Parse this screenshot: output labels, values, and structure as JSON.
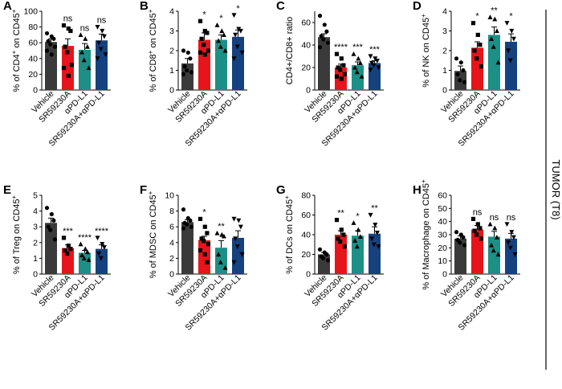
{
  "side_label": "TUMOR (T8)",
  "colors": {
    "Vehicle": "#3a3a3a",
    "SR59230A": "#e8141b",
    "aPD-L1": "#1c8f86",
    "SR59230A+aPD-L1": "#15427f"
  },
  "marker_shapes": [
    "circle",
    "square",
    "triangle-up",
    "triangle-down"
  ],
  "chart_data": [
    {
      "panel": "A",
      "type": "bar",
      "ylabel_parts": [
        "% of CD4",
        "+",
        " on CD45",
        "+"
      ],
      "ylim": [
        0,
        100
      ],
      "ticks": [
        0,
        20,
        40,
        60,
        80,
        100
      ],
      "categories": [
        "Vehicle",
        "SR59230A",
        "αPD-L1",
        "SR59230A+αPD-L1"
      ],
      "means": [
        61,
        56,
        51,
        63
      ],
      "sems": [
        4,
        9,
        8,
        8
      ],
      "significance": [
        "",
        "ns",
        "ns",
        "ns"
      ],
      "points": [
        [
          72,
          68,
          65,
          62,
          58,
          55,
          50,
          45
        ],
        [
          82,
          78,
          75,
          55,
          48,
          32,
          28,
          18
        ],
        [
          70,
          65,
          55,
          48,
          38,
          28
        ],
        [
          80,
          75,
          68,
          60,
          52,
          45,
          40
        ]
      ]
    },
    {
      "panel": "B",
      "type": "bar",
      "ylabel_parts": [
        "% of CD8",
        "+",
        " on CD45",
        "+"
      ],
      "ylim": [
        0,
        4
      ],
      "ticks": [
        0,
        1,
        2,
        3,
        4
      ],
      "categories": [
        "Vehicle",
        "SR59230A",
        "αPD-L1",
        "SR59230A+αPD-L1"
      ],
      "means": [
        1.35,
        2.55,
        2.55,
        2.7
      ],
      "sems": [
        0.25,
        0.35,
        0.25,
        0.35
      ],
      "significance": [
        "",
        "*",
        "*",
        "*"
      ],
      "points": [
        [
          2.0,
          1.9,
          1.6,
          1.2,
          1.0,
          0.9,
          0.8
        ],
        [
          3.5,
          3.0,
          2.9,
          2.6,
          2.3,
          2.0,
          1.9,
          1.8
        ],
        [
          3.3,
          3.0,
          2.8,
          2.5,
          2.2,
          2.0
        ],
        [
          3.8,
          3.1,
          3.0,
          2.8,
          2.2,
          1.9,
          1.6
        ]
      ]
    },
    {
      "panel": "C",
      "type": "bar",
      "ylabel_parts": [
        "CD4+/CD8+ ratio"
      ],
      "ylim": [
        0,
        70
      ],
      "ticks": [
        0,
        20,
        40,
        60
      ],
      "categories": [
        "Vehicle",
        "SR59230A",
        "αPD-L1",
        "SR59230A+αPD-L1"
      ],
      "means": [
        47,
        20,
        22,
        24
      ],
      "sems": [
        3,
        3,
        3,
        2
      ],
      "significance": [
        "",
        "****",
        "***",
        "***"
      ],
      "points": [
        [
          66,
          58,
          52,
          48,
          45,
          42,
          38
        ],
        [
          32,
          28,
          22,
          20,
          18,
          14,
          12,
          10
        ],
        [
          32,
          28,
          24,
          20,
          16,
          12
        ],
        [
          30,
          28,
          26,
          24,
          22,
          20,
          18
        ]
      ]
    },
    {
      "panel": "D",
      "type": "bar",
      "ylabel_parts": [
        "% of NK on CD45",
        "+"
      ],
      "ylim": [
        0,
        4
      ],
      "ticks": [
        0,
        1,
        2,
        3,
        4
      ],
      "categories": [
        "Vehicle",
        "SR59230A",
        "αPD-L1",
        "SR59230A+αPD-L1"
      ],
      "means": [
        0.97,
        2.15,
        2.8,
        2.45
      ],
      "sems": [
        0.25,
        0.3,
        0.4,
        0.4
      ],
      "significance": [
        "",
        "*",
        "**",
        "*"
      ],
      "points": [
        [
          1.6,
          1.4,
          1.0,
          0.8,
          0.5,
          0.4
        ],
        [
          3.4,
          2.8,
          2.3,
          2.0,
          1.6,
          1.2
        ],
        [
          3.7,
          3.6,
          3.0,
          2.6,
          2.2,
          1.4
        ],
        [
          3.4,
          3.0,
          2.6,
          2.0,
          1.5
        ]
      ]
    },
    {
      "panel": "E",
      "type": "bar",
      "ylabel_parts": [
        "% of Treg on CD45",
        "+"
      ],
      "ylim": [
        0,
        5
      ],
      "ticks": [
        0,
        1,
        2,
        3,
        4,
        5
      ],
      "categories": [
        "Vehicle",
        "SR59230A",
        "αPD-L1",
        "SR59230A+αPD-L1"
      ],
      "means": [
        3.25,
        1.65,
        1.35,
        1.6
      ],
      "sems": [
        0.3,
        0.2,
        0.15,
        0.25
      ],
      "significance": [
        "",
        "***",
        "****",
        "****"
      ],
      "points": [
        [
          4.2,
          3.8,
          3.4,
          3.0,
          2.8,
          2.2
        ],
        [
          2.3,
          1.8,
          1.6,
          1.5,
          1.3
        ],
        [
          1.9,
          1.6,
          1.4,
          1.2,
          1.0,
          0.9
        ],
        [
          2.3,
          1.9,
          1.7,
          1.3,
          1.0
        ]
      ]
    },
    {
      "panel": "F",
      "type": "bar",
      "ylabel_parts": [
        "% of MDSC on CD45",
        "+"
      ],
      "ylim": [
        0,
        10
      ],
      "ticks": [
        0,
        2,
        4,
        6,
        8,
        10
      ],
      "categories": [
        "Vehicle",
        "SR59230A",
        "αPD-L1",
        "SR59230A+αPD-L1"
      ],
      "means": [
        6.6,
        4.3,
        3.35,
        4.6
      ],
      "sems": [
        0.3,
        0.5,
        0.9,
        0.9
      ],
      "significance": [
        "",
        "*",
        "**",
        ""
      ],
      "points": [
        [
          8.2,
          7.1,
          6.8,
          6.5,
          6.3,
          6.0,
          5.8
        ],
        [
          7.0,
          6.0,
          5.2,
          4.5,
          4.2,
          3.8,
          3.0,
          2.5,
          1.5
        ],
        [
          5.2,
          5.0,
          4.8,
          2.5,
          1.5,
          0.8
        ],
        [
          7.0,
          6.8,
          6.0,
          4.5,
          3.5,
          2.5,
          1.5
        ]
      ]
    },
    {
      "panel": "G",
      "type": "bar",
      "ylabel_parts": [
        "% of DCs on CD45",
        "+"
      ],
      "ylim": [
        0,
        80
      ],
      "ticks": [
        0,
        20,
        40,
        60,
        80
      ],
      "categories": [
        "Vehicle",
        "SR59230A",
        "αPD-L1",
        "SR59230A+αPD-L1"
      ],
      "means": [
        20,
        40,
        39,
        41
      ],
      "sems": [
        2,
        4,
        5,
        7
      ],
      "significance": [
        "",
        "**",
        "*",
        "**"
      ],
      "points": [
        [
          25,
          22,
          20,
          18,
          16,
          14
        ],
        [
          55,
          45,
          40,
          36,
          33,
          28
        ],
        [
          52,
          45,
          38,
          34,
          28
        ],
        [
          60,
          50,
          42,
          36,
          30,
          28
        ]
      ]
    },
    {
      "panel": "H",
      "type": "bar",
      "ylabel_parts": [
        "% of Macrophage on CD45",
        "+"
      ],
      "ylim": [
        0,
        60
      ],
      "ticks": [
        0,
        10,
        20,
        30,
        40,
        50,
        60
      ],
      "categories": [
        "Vehicle",
        "SR59230A",
        "αPD-L1",
        "SR59230A+αPD-L1"
      ],
      "means": [
        27,
        34,
        28.5,
        27
      ],
      "sems": [
        2,
        3,
        4,
        4
      ],
      "significance": [
        "",
        "ns",
        "ns",
        "ns"
      ],
      "points": [
        [
          32,
          30,
          28,
          26,
          24,
          22
        ],
        [
          42,
          38,
          35,
          33,
          30,
          27
        ],
        [
          38,
          35,
          28,
          22,
          18,
          15
        ],
        [
          38,
          32,
          28,
          24,
          20,
          15
        ]
      ]
    }
  ]
}
